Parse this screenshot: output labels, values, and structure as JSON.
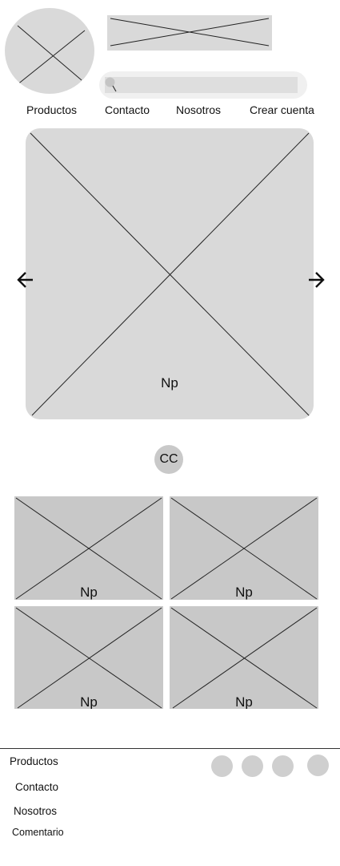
{
  "header": {
    "logo_icon": "image-placeholder-icon",
    "banner_icon": "image-placeholder-icon",
    "search": {
      "icon": "search-icon",
      "value": ""
    },
    "nav": [
      {
        "label": "Productos"
      },
      {
        "label": "Contacto"
      },
      {
        "label": "Nosotros"
      },
      {
        "label": "Crear cuenta"
      }
    ]
  },
  "carousel": {
    "prev_icon": "arrow-left-icon",
    "next_icon": "arrow-right-icon",
    "caption": "Np"
  },
  "badge": {
    "label": "CC"
  },
  "grid": {
    "cards": [
      {
        "label": "Np"
      },
      {
        "label": "Np"
      },
      {
        "label": "Np"
      },
      {
        "label": "Np"
      }
    ]
  },
  "footer": {
    "links": [
      {
        "label": "Productos"
      },
      {
        "label": "Contacto"
      },
      {
        "label": "Nosotros"
      },
      {
        "label": "Comentario"
      }
    ],
    "social_icons": [
      "social-icon",
      "social-icon",
      "social-icon",
      "social-icon"
    ]
  },
  "colors": {
    "placeholder": "#d9d9d9",
    "card": "#c8c8c8",
    "search_bg": "#f0f0f0",
    "divider": "#333333"
  }
}
